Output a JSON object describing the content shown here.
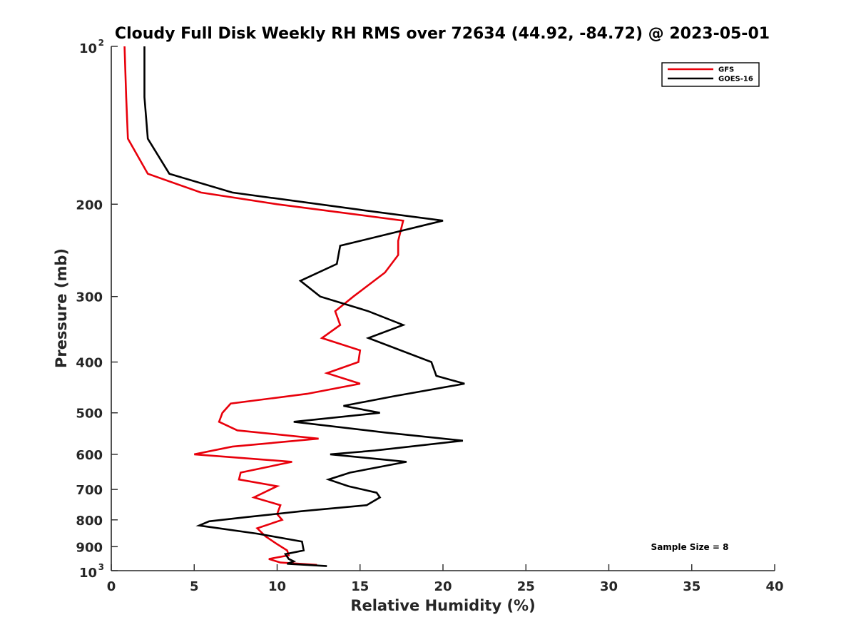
{
  "chart_data": {
    "type": "line",
    "title": "Cloudy Full Disk Weekly RH RMS over 72634 (44.92, -84.72) @ 2023-05-01",
    "xlabel": "Relative Humidity (%)",
    "ylabel": "Pressure (mb)",
    "xlim": [
      0,
      40
    ],
    "ylim": [
      100,
      1000
    ],
    "yscale": "log",
    "y_reversed": true,
    "grid": false,
    "legend_position": "top-right",
    "annotation": "Sample Size = 8",
    "x_ticks": [
      "0",
      "5",
      "10",
      "15",
      "20",
      "25",
      "30",
      "35",
      "40"
    ],
    "y_ticks": [
      {
        "value": 100,
        "base": "10",
        "exp": "2"
      },
      {
        "value": 200,
        "label": "200"
      },
      {
        "value": 300,
        "label": "300"
      },
      {
        "value": 400,
        "label": "400"
      },
      {
        "value": 500,
        "label": "500"
      },
      {
        "value": 600,
        "label": "600"
      },
      {
        "value": 700,
        "label": "700"
      },
      {
        "value": 800,
        "label": "800"
      },
      {
        "value": 900,
        "label": "900"
      },
      {
        "value": 1000,
        "base": "10",
        "exp": "3"
      }
    ],
    "series": [
      {
        "name": "GFS",
        "color": "#e8000b",
        "points": [
          [
            0.8,
            100
          ],
          [
            0.9,
            125
          ],
          [
            1.0,
            150
          ],
          [
            2.2,
            175
          ],
          [
            5.4,
            190
          ],
          [
            10.0,
            200
          ],
          [
            17.6,
            215
          ],
          [
            17.3,
            235
          ],
          [
            17.3,
            250
          ],
          [
            16.5,
            270
          ],
          [
            14.6,
            300
          ],
          [
            13.5,
            320
          ],
          [
            13.8,
            340
          ],
          [
            12.7,
            360
          ],
          [
            15.0,
            380
          ],
          [
            14.9,
            400
          ],
          [
            13.0,
            420
          ],
          [
            15.0,
            440
          ],
          [
            11.8,
            460
          ],
          [
            7.2,
            480
          ],
          [
            6.7,
            500
          ],
          [
            6.5,
            520
          ],
          [
            7.6,
            540
          ],
          [
            12.5,
            560
          ],
          [
            7.3,
            580
          ],
          [
            5.0,
            600
          ],
          [
            10.9,
            620
          ],
          [
            7.8,
            650
          ],
          [
            7.7,
            670
          ],
          [
            10.0,
            690
          ],
          [
            8.6,
            725
          ],
          [
            10.2,
            750
          ],
          [
            10.0,
            780
          ],
          [
            10.3,
            800
          ],
          [
            8.8,
            830
          ],
          [
            9.3,
            860
          ],
          [
            10.0,
            890
          ],
          [
            10.6,
            915
          ],
          [
            10.7,
            935
          ],
          [
            9.5,
            950
          ],
          [
            10.2,
            965
          ],
          [
            12.4,
            975
          ]
        ]
      },
      {
        "name": "GOES-16",
        "color": "#000000",
        "points": [
          [
            2.0,
            100
          ],
          [
            2.0,
            125
          ],
          [
            2.2,
            150
          ],
          [
            3.5,
            175
          ],
          [
            7.3,
            190
          ],
          [
            15.0,
            205
          ],
          [
            20.0,
            215
          ],
          [
            13.8,
            240
          ],
          [
            13.6,
            260
          ],
          [
            11.4,
            280
          ],
          [
            12.6,
            300
          ],
          [
            15.5,
            320
          ],
          [
            17.6,
            340
          ],
          [
            15.5,
            360
          ],
          [
            19.3,
            400
          ],
          [
            19.6,
            425
          ],
          [
            21.3,
            440
          ],
          [
            17.0,
            465
          ],
          [
            14.0,
            485
          ],
          [
            16.2,
            500
          ],
          [
            11.0,
            520
          ],
          [
            16.5,
            545
          ],
          [
            21.2,
            565
          ],
          [
            15.9,
            590
          ],
          [
            13.2,
            600
          ],
          [
            17.8,
            620
          ],
          [
            14.4,
            650
          ],
          [
            13.1,
            670
          ],
          [
            14.3,
            690
          ],
          [
            16.0,
            710
          ],
          [
            16.2,
            725
          ],
          [
            15.4,
            750
          ],
          [
            11.5,
            770
          ],
          [
            8.2,
            790
          ],
          [
            5.9,
            805
          ],
          [
            5.3,
            820
          ],
          [
            8.8,
            850
          ],
          [
            11.5,
            880
          ],
          [
            11.6,
            915
          ],
          [
            10.5,
            930
          ],
          [
            10.7,
            950
          ],
          [
            11.0,
            960
          ],
          [
            10.6,
            970
          ],
          [
            13.0,
            980
          ]
        ]
      }
    ]
  }
}
